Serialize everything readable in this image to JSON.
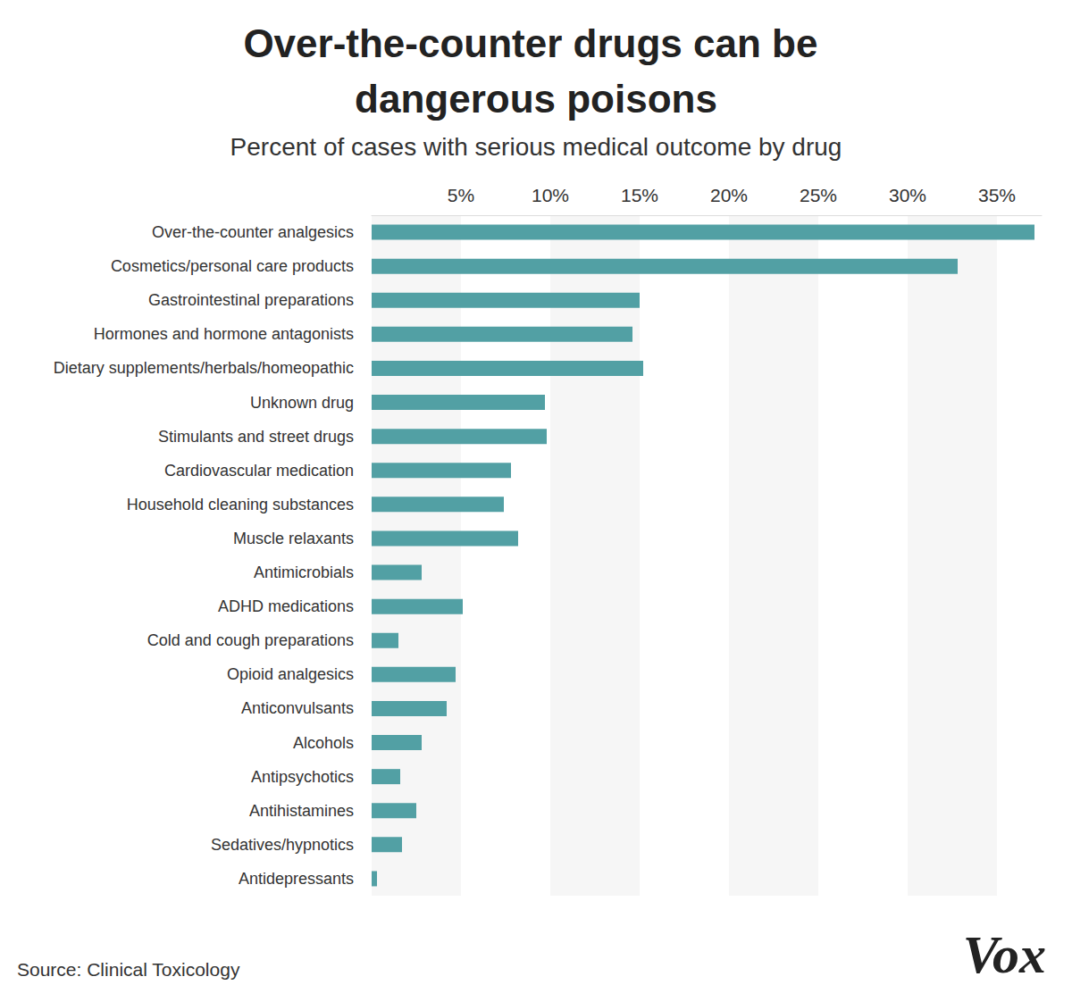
{
  "chart_data": {
    "type": "bar",
    "title": "Over-the-counter drugs can be dangerous poisons",
    "subtitle": "Percent of cases with serious medical outcome by drug",
    "source": "Source: Clinical Toxicology",
    "logo": "Vox",
    "orientation": "horizontal",
    "categories": [
      "Over-the-counter analgesics",
      "Cosmetics/personal care products",
      "Gastrointestinal preparations",
      "Hormones and hormone antagonists",
      "Dietary supplements/herbals/homeopathic",
      "Unknown drug",
      "Stimulants and street drugs",
      "Cardiovascular medication",
      "Household cleaning substances",
      "Muscle relaxants",
      "Antimicrobials",
      "ADHD medications",
      "Cold and cough preparations",
      "Opioid analgesics",
      "Anticonvulsants",
      "Alcohols",
      "Antipsychotics",
      "Antihistamines",
      "Sedatives/hypnotics",
      "Antidepressants"
    ],
    "values": [
      37.1,
      32.8,
      15.0,
      14.6,
      15.2,
      9.7,
      9.8,
      7.8,
      7.4,
      8.2,
      2.8,
      5.1,
      1.5,
      4.7,
      4.2,
      2.8,
      1.6,
      2.5,
      1.7,
      0.3
    ],
    "color": "#52a0a4",
    "xlim": [
      0,
      37.5
    ],
    "xticks": [
      {
        "value": 5,
        "label": "5%"
      },
      {
        "value": 10,
        "label": "10%"
      },
      {
        "value": 15,
        "label": "15%"
      },
      {
        "value": 20,
        "label": "20%"
      },
      {
        "value": 25,
        "label": "25%"
      },
      {
        "value": 30,
        "label": "30%"
      },
      {
        "value": 35,
        "label": "35%"
      }
    ],
    "grid": true
  }
}
